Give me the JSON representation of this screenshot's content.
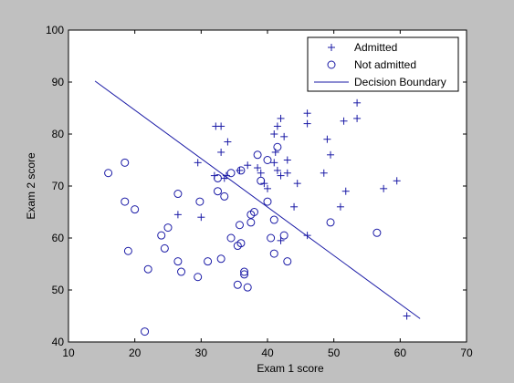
{
  "chart_data": {
    "type": "scatter",
    "xlabel": "Exam 1 score",
    "ylabel": "Exam 2 score",
    "xlim": [
      10,
      70
    ],
    "ylim": [
      40,
      100
    ],
    "xticks": [
      "10",
      "20",
      "30",
      "40",
      "50",
      "60",
      "70"
    ],
    "yticks": [
      "40",
      "50",
      "60",
      "70",
      "80",
      "90",
      "100"
    ],
    "legend_position": "top-right",
    "grid": false,
    "series_color": "#1a1aa6",
    "series": [
      {
        "name": "Admitted",
        "marker": "plus",
        "x": [
          32.2,
          33.0,
          34.0,
          35.8,
          37.0,
          38.5,
          39.5,
          41.0,
          41.5,
          42.0,
          42.5,
          46.0,
          46.0,
          51.5,
          53.5,
          53.5,
          33.0,
          33.8,
          41.2,
          43.0,
          49.0,
          49.5,
          48.5,
          41.0,
          42.0,
          51.8,
          51.0,
          57.5,
          59.5,
          61.0,
          29.5,
          32.0,
          33.5,
          39.0,
          40.0,
          41.5,
          43.0,
          44.0,
          44.5,
          26.5,
          30.0,
          46.0,
          42.0
        ],
        "y": [
          81.5,
          81.5,
          78.5,
          73.0,
          74.0,
          73.5,
          70.5,
          80.0,
          81.5,
          83.0,
          79.5,
          84.0,
          82.0,
          82.5,
          86.0,
          83.0,
          76.5,
          72.0,
          76.5,
          75.0,
          79.0,
          76.0,
          72.5,
          74.5,
          72.0,
          69.0,
          66.0,
          69.5,
          71.0,
          45.0,
          74.5,
          72.0,
          71.5,
          72.5,
          69.5,
          73.0,
          72.5,
          66.0,
          70.5,
          64.5,
          64.0,
          60.5,
          59.5
        ]
      },
      {
        "name": "Not admitted",
        "marker": "circle",
        "x": [
          16.0,
          18.5,
          18.5,
          19.0,
          20.0,
          22.0,
          21.5,
          24.0,
          24.5,
          26.5,
          26.5,
          27.0,
          29.5,
          29.8,
          31.0,
          32.5,
          32.5,
          33.0,
          33.5,
          34.5,
          34.5,
          35.5,
          35.5,
          35.8,
          36.0,
          36.5,
          36.5,
          37.0,
          37.5,
          37.5,
          38.0,
          38.5,
          39.0,
          40.0,
          40.0,
          41.0,
          41.0,
          41.5,
          42.5,
          43.0,
          49.5,
          56.5,
          36.0,
          40.5,
          25.0
        ],
        "y": [
          72.5,
          74.5,
          67.0,
          57.5,
          65.5,
          54.0,
          42.0,
          60.5,
          58.0,
          68.5,
          55.5,
          53.5,
          52.5,
          67.0,
          55.5,
          71.5,
          69.0,
          56.0,
          68.0,
          72.5,
          60.0,
          58.5,
          51.0,
          62.5,
          73.0,
          53.5,
          53.0,
          50.5,
          64.5,
          63.0,
          65.0,
          76.0,
          71.0,
          67.0,
          75.0,
          63.5,
          57.0,
          77.5,
          60.5,
          55.5,
          63.0,
          61.0,
          59.0,
          60.0,
          62.0
        ]
      }
    ],
    "decision_boundary": {
      "name": "Decision Boundary",
      "x": [
        14,
        63
      ],
      "y": [
        90.2,
        44.5
      ]
    }
  }
}
